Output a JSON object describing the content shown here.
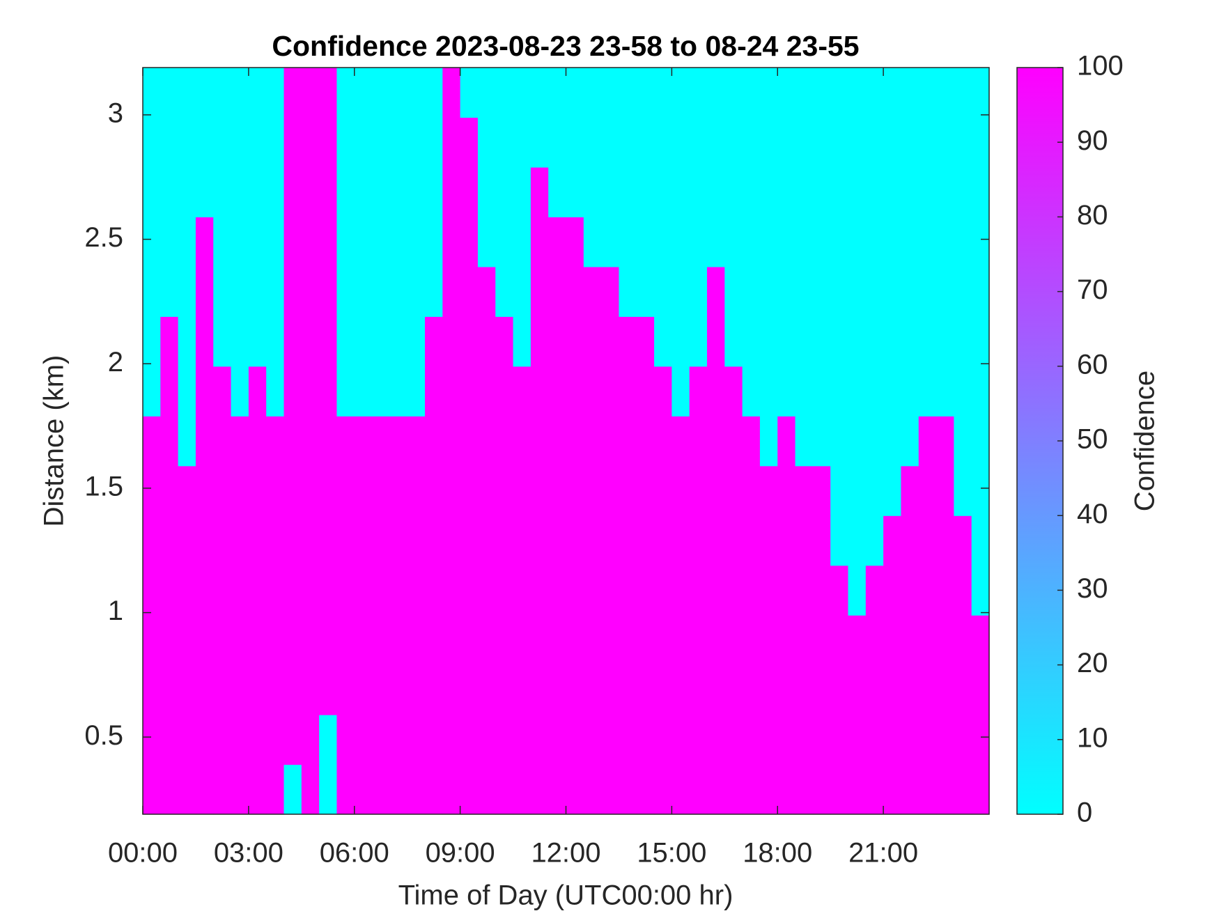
{
  "chart_data": {
    "type": "heatmap",
    "title": "Confidence 2023-08-23 23-58 to 08-24 23-55",
    "xlabel": "Time of Day (UTC00:00 hr)",
    "ylabel": "Distance (km)",
    "x": [
      0.25,
      0.75,
      1.25,
      1.75,
      2.25,
      2.75,
      3.25,
      3.75,
      4.25,
      4.75,
      5.25,
      5.75,
      6.25,
      6.75,
      7.25,
      7.75,
      8.25,
      8.75,
      9.25,
      9.75,
      10.25,
      10.75,
      11.25,
      11.75,
      12.25,
      12.75,
      13.25,
      13.75,
      14.25,
      14.75,
      15.25,
      15.75,
      16.25,
      16.75,
      17.25,
      17.75,
      18.25,
      18.75,
      19.25,
      19.75,
      20.25,
      20.75,
      21.25,
      21.75,
      22.25,
      22.75,
      23.25,
      23.75
    ],
    "y": [
      0.29,
      0.49,
      0.69,
      0.89,
      1.09,
      1.29,
      1.49,
      1.69,
      1.89,
      2.09,
      2.29,
      2.49,
      2.69,
      2.89,
      3.09
    ],
    "z": [
      [
        100,
        100,
        100,
        100,
        100,
        100,
        100,
        100,
        0,
        100,
        0,
        100,
        100,
        100,
        100,
        100,
        100,
        100,
        100,
        100,
        100,
        100,
        100,
        100,
        100,
        100,
        100,
        100,
        100,
        100,
        100,
        100,
        100,
        100,
        100,
        100,
        100,
        100,
        100,
        100,
        100,
        100,
        100,
        100,
        100,
        100,
        100,
        100
      ],
      [
        100,
        100,
        100,
        100,
        100,
        100,
        100,
        100,
        100,
        100,
        0,
        100,
        100,
        100,
        100,
        100,
        100,
        100,
        100,
        100,
        100,
        100,
        100,
        100,
        100,
        100,
        100,
        100,
        100,
        100,
        100,
        100,
        100,
        100,
        100,
        100,
        100,
        100,
        100,
        100,
        100,
        100,
        100,
        100,
        100,
        100,
        100,
        100
      ],
      [
        100,
        100,
        100,
        100,
        100,
        100,
        100,
        100,
        100,
        100,
        100,
        100,
        100,
        100,
        100,
        100,
        100,
        100,
        100,
        100,
        100,
        100,
        100,
        100,
        100,
        100,
        100,
        100,
        100,
        100,
        100,
        100,
        100,
        100,
        100,
        100,
        100,
        100,
        100,
        100,
        100,
        100,
        100,
        100,
        100,
        100,
        100,
        100
      ],
      [
        100,
        100,
        100,
        100,
        100,
        100,
        100,
        100,
        100,
        100,
        100,
        100,
        100,
        100,
        100,
        100,
        100,
        100,
        100,
        100,
        100,
        100,
        100,
        100,
        100,
        100,
        100,
        100,
        100,
        100,
        100,
        100,
        100,
        100,
        100,
        100,
        100,
        100,
        100,
        100,
        100,
        100,
        100,
        100,
        100,
        100,
        100,
        100
      ],
      [
        100,
        100,
        100,
        100,
        100,
        100,
        100,
        100,
        100,
        100,
        100,
        100,
        100,
        100,
        100,
        100,
        100,
        100,
        100,
        100,
        100,
        100,
        100,
        100,
        100,
        100,
        100,
        100,
        100,
        100,
        100,
        100,
        100,
        100,
        100,
        100,
        100,
        100,
        100,
        100,
        0,
        100,
        100,
        100,
        100,
        100,
        100,
        0
      ],
      [
        100,
        100,
        100,
        100,
        100,
        100,
        100,
        100,
        100,
        100,
        100,
        100,
        100,
        100,
        100,
        100,
        100,
        100,
        100,
        100,
        100,
        100,
        100,
        100,
        100,
        100,
        100,
        100,
        100,
        100,
        100,
        100,
        100,
        100,
        100,
        100,
        100,
        100,
        100,
        0,
        0,
        0,
        100,
        100,
        100,
        100,
        100,
        0
      ],
      [
        100,
        100,
        100,
        100,
        100,
        100,
        100,
        100,
        100,
        100,
        100,
        100,
        100,
        100,
        100,
        100,
        100,
        100,
        100,
        100,
        100,
        100,
        100,
        100,
        100,
        100,
        100,
        100,
        100,
        100,
        100,
        100,
        100,
        100,
        100,
        100,
        100,
        100,
        100,
        0,
        0,
        0,
        0,
        100,
        100,
        100,
        0,
        0
      ],
      [
        100,
        100,
        0,
        100,
        100,
        100,
        100,
        100,
        100,
        100,
        100,
        100,
        100,
        100,
        100,
        100,
        100,
        100,
        100,
        100,
        100,
        100,
        100,
        100,
        100,
        100,
        100,
        100,
        100,
        100,
        100,
        100,
        100,
        100,
        100,
        0,
        100,
        0,
        0,
        0,
        0,
        0,
        0,
        0,
        100,
        100,
        0,
        0
      ],
      [
        0,
        100,
        0,
        100,
        100,
        0,
        100,
        0,
        100,
        100,
        100,
        0,
        0,
        0,
        0,
        0,
        100,
        100,
        100,
        100,
        100,
        100,
        100,
        100,
        100,
        100,
        100,
        100,
        100,
        100,
        0,
        100,
        100,
        100,
        0,
        0,
        0,
        0,
        0,
        0,
        0,
        0,
        0,
        0,
        0,
        0,
        0,
        0
      ],
      [
        0,
        100,
        0,
        100,
        0,
        0,
        0,
        0,
        100,
        100,
        100,
        0,
        0,
        0,
        0,
        0,
        100,
        100,
        100,
        100,
        100,
        0,
        100,
        100,
        100,
        100,
        100,
        100,
        100,
        0,
        0,
        0,
        100,
        0,
        0,
        0,
        0,
        0,
        0,
        0,
        0,
        0,
        0,
        0,
        0,
        0,
        0,
        0
      ],
      [
        0,
        0,
        0,
        100,
        0,
        0,
        0,
        0,
        100,
        100,
        100,
        0,
        0,
        0,
        0,
        0,
        0,
        100,
        100,
        100,
        0,
        0,
        100,
        100,
        100,
        100,
        100,
        0,
        0,
        0,
        0,
        0,
        100,
        0,
        0,
        0,
        0,
        0,
        0,
        0,
        0,
        0,
        0,
        0,
        0,
        0,
        0,
        0
      ],
      [
        0,
        0,
        0,
        100,
        0,
        0,
        0,
        0,
        100,
        100,
        100,
        0,
        0,
        0,
        0,
        0,
        0,
        100,
        100,
        0,
        0,
        0,
        100,
        100,
        100,
        0,
        0,
        0,
        0,
        0,
        0,
        0,
        0,
        0,
        0,
        0,
        0,
        0,
        0,
        0,
        0,
        0,
        0,
        0,
        0,
        0,
        0,
        0
      ],
      [
        0,
        0,
        0,
        0,
        0,
        0,
        0,
        0,
        100,
        100,
        100,
        0,
        0,
        0,
        0,
        0,
        0,
        100,
        100,
        0,
        0,
        0,
        100,
        0,
        0,
        0,
        0,
        0,
        0,
        0,
        0,
        0,
        0,
        0,
        0,
        0,
        0,
        0,
        0,
        0,
        0,
        0,
        0,
        0,
        0,
        0,
        0,
        0
      ],
      [
        0,
        0,
        0,
        0,
        0,
        0,
        0,
        0,
        100,
        100,
        100,
        0,
        0,
        0,
        0,
        0,
        0,
        100,
        100,
        0,
        0,
        0,
        0,
        0,
        0,
        0,
        0,
        0,
        0,
        0,
        0,
        0,
        0,
        0,
        0,
        0,
        0,
        0,
        0,
        0,
        0,
        0,
        0,
        0,
        0,
        0,
        0,
        0
      ],
      [
        0,
        0,
        0,
        0,
        0,
        0,
        0,
        0,
        100,
        100,
        100,
        0,
        0,
        0,
        0,
        0,
        0,
        100,
        0,
        0,
        0,
        0,
        0,
        0,
        0,
        0,
        0,
        0,
        0,
        0,
        0,
        0,
        0,
        0,
        0,
        0,
        0,
        0,
        0,
        0,
        0,
        0,
        0,
        0,
        0,
        0,
        0,
        0
      ]
    ],
    "xlim": [
      0,
      24
    ],
    "xticks": [
      {
        "value": 0,
        "label": "00:00"
      },
      {
        "value": 3,
        "label": "03:00"
      },
      {
        "value": 6,
        "label": "06:00"
      },
      {
        "value": 9,
        "label": "09:00"
      },
      {
        "value": 12,
        "label": "12:00"
      },
      {
        "value": 15,
        "label": "15:00"
      },
      {
        "value": 18,
        "label": "18:00"
      },
      {
        "value": 21,
        "label": "21:00"
      }
    ],
    "ylim": [
      0.19,
      3.19
    ],
    "yticks": [
      0.5,
      1,
      1.5,
      2,
      2.5,
      3
    ],
    "colormap": [
      "#00ffff",
      "#ff00ff"
    ],
    "colorbar": {
      "label": "Confidence",
      "lim": [
        0,
        100
      ],
      "ticks": [
        0,
        10,
        20,
        30,
        40,
        50,
        60,
        70,
        80,
        90,
        100
      ]
    },
    "grid": false
  }
}
